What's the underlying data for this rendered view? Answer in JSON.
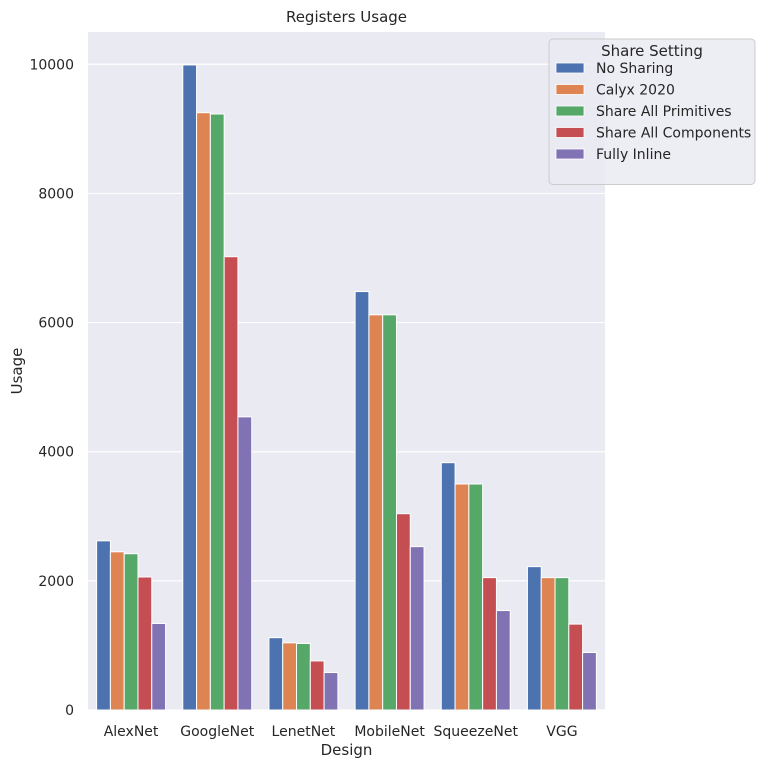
{
  "chart_data": {
    "type": "bar",
    "title": "Registers Usage",
    "xlabel": "Design",
    "ylabel": "Usage",
    "ylim": [
      0,
      10500
    ],
    "yticks": [
      0,
      2000,
      4000,
      6000,
      8000,
      10000
    ],
    "grid": true,
    "legend": {
      "title": "Share Setting",
      "placement": "top-right"
    },
    "categories": [
      "AlexNet",
      "GoogleNet",
      "LenetNet",
      "MobileNet",
      "SqueezeNet",
      "VGG"
    ],
    "series": [
      {
        "name": "No Sharing",
        "color": "#4c72b0",
        "values": [
          2620,
          9990,
          1120,
          6480,
          3830,
          2220
        ]
      },
      {
        "name": "Calyx 2020",
        "color": "#dd8452",
        "values": [
          2450,
          9250,
          1040,
          6120,
          3500,
          2050
        ]
      },
      {
        "name": "Share All Primitives",
        "color": "#55a868",
        "values": [
          2420,
          9230,
          1030,
          6120,
          3500,
          2050
        ]
      },
      {
        "name": "Share All Components",
        "color": "#c44e52",
        "values": [
          2060,
          7020,
          760,
          3040,
          2050,
          1330
        ]
      },
      {
        "name": "Fully Inline",
        "color": "#8172b3",
        "values": [
          1340,
          4540,
          580,
          2530,
          1540,
          890
        ]
      }
    ]
  }
}
